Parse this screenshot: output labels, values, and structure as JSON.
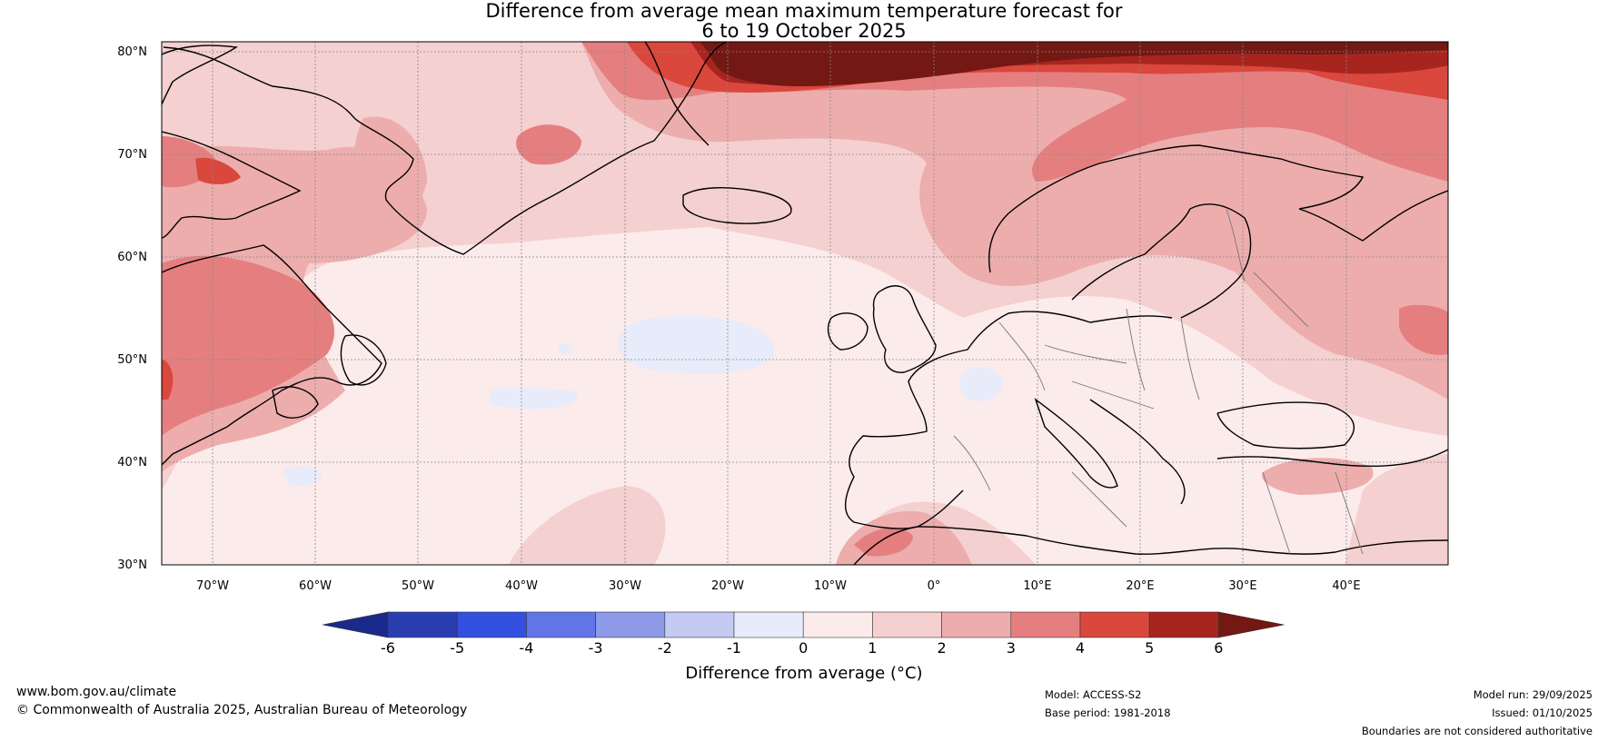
{
  "title_line1": "Difference from average mean maximum temperature forecast for",
  "title_line2": "6 to 19 October 2025",
  "lat_labels": [
    "80°N",
    "70°N",
    "60°N",
    "50°N",
    "40°N",
    "30°N"
  ],
  "lon_labels": [
    "70°W",
    "60°W",
    "50°W",
    "40°W",
    "30°W",
    "20°W",
    "10°W",
    "0°",
    "10°E",
    "20°E",
    "30°E",
    "40°E"
  ],
  "colorbar": {
    "label": "Difference from average (°C)",
    "ticks": [
      "-6",
      "-5",
      "-4",
      "-3",
      "-2",
      "-1",
      "0",
      "1",
      "2",
      "3",
      "4",
      "5",
      "6"
    ],
    "colors": [
      "#1a2a8a",
      "#2a3db0",
      "#3350e0",
      "#6275e6",
      "#8c9ae8",
      "#c4caf2",
      "#e8ebfa",
      "#fcebeb",
      "#f5d0d0",
      "#edadad",
      "#e57f7f",
      "#d9473d",
      "#a8251f",
      "#731812"
    ]
  },
  "footer": {
    "website": "www.bom.gov.au/climate",
    "copyright": "© Commonwealth of Australia 2025, Australian Bureau of Meteorology",
    "model": "Model: ACCESS-S2",
    "base_period": "Base period: 1981-2018",
    "model_run": "Model run: 29/09/2025",
    "issued": "Issued: 01/10/2025",
    "disclaimer": "Boundaries are not considered authoritative"
  }
}
